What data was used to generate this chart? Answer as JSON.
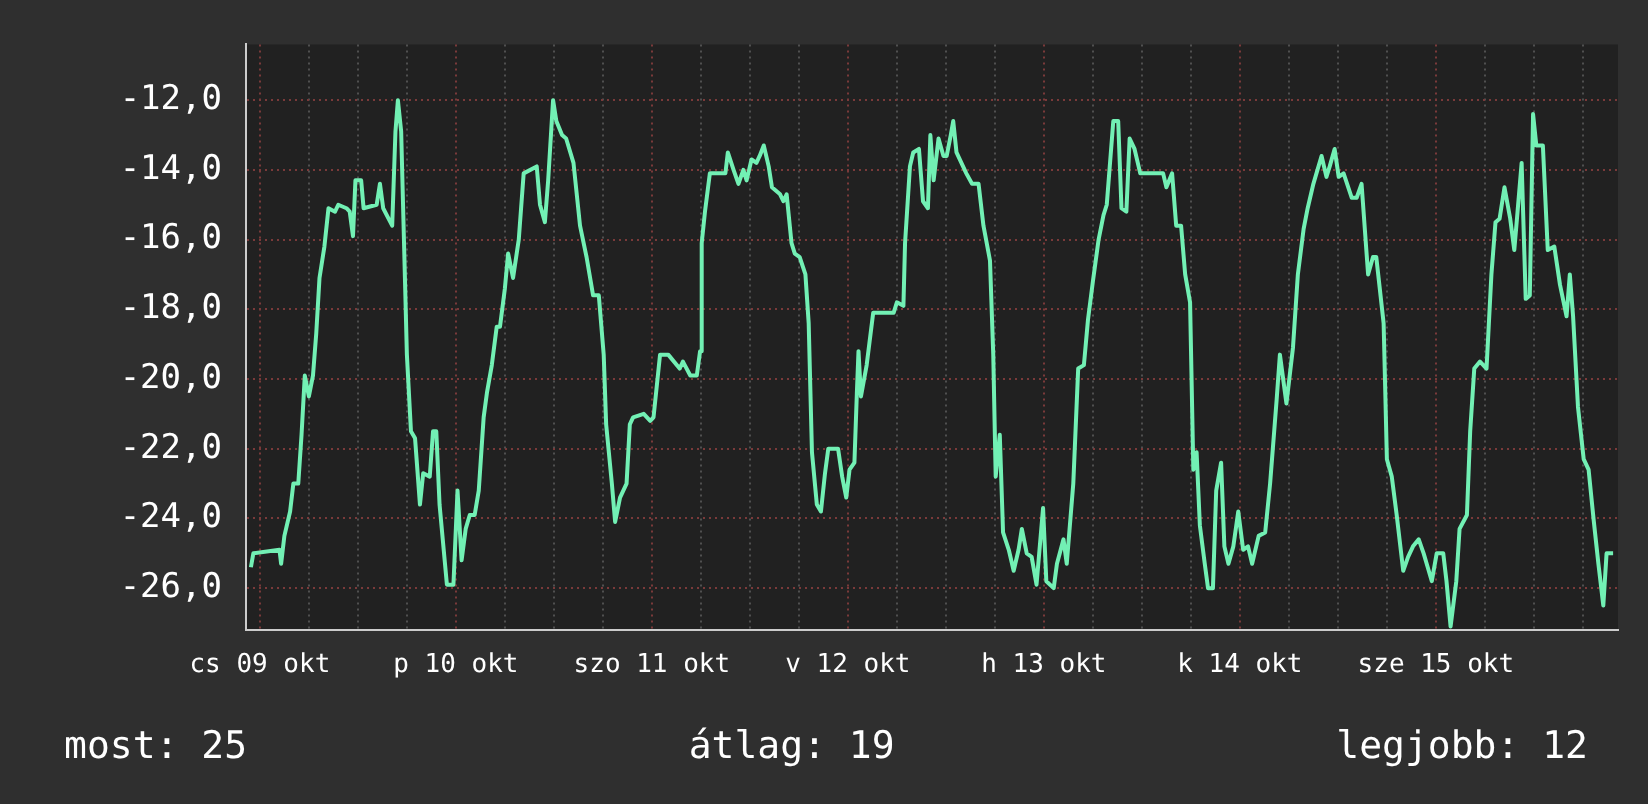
{
  "chart_data": {
    "type": "line",
    "series": [
      {
        "color": "#72f0b4",
        "x": [
          "--10-09T10:54",
          "--10-09T11:12",
          "--10-09T14:24",
          "--10-09T14:36",
          "--10-09T15:00",
          "--10-09T15:42",
          "--10-09T16:06",
          "--10-09T16:42",
          "--10-09T17:06",
          "--10-09T17:30",
          "--10-09T18:00",
          "--10-09T18:30",
          "--10-09T18:54",
          "--10-09T19:18",
          "--10-09T19:54",
          "--10-09T20:24",
          "--10-09T21:12",
          "--10-09T21:36",
          "--10-09T22:36",
          "--10-09T23:00",
          "--10-09T23:24",
          "--10-09T23:42",
          "--10-10T00:24",
          "--10-10T00:42",
          "--10-10T02:18",
          "--10-10T02:42",
          "--10-10T03:06",
          "--10-10T04:12",
          "--10-10T04:36",
          "--10-10T04:54",
          "--10-10T05:18",
          "--10-10T06:00",
          "--10-10T06:30",
          "--10-10T07:00",
          "--10-10T07:36",
          "--10-10T08:00",
          "--10-10T08:48",
          "--10-10T09:12",
          "--10-10T09:36",
          "--10-10T10:00",
          "--10-10T10:54",
          "--10-10T11:42",
          "--10-10T12:12",
          "--10-10T12:42",
          "--10-10T13:12",
          "--10-10T13:42",
          "--10-10T14:18",
          "--10-10T14:48",
          "--10-10T15:24",
          "--10-10T15:48",
          "--10-10T16:24",
          "--10-10T17:00",
          "--10-10T17:24",
          "--10-10T18:00",
          "--10-10T18:24",
          "--10-10T19:00",
          "--10-10T19:42",
          "--10-10T20:18",
          "--10-10T21:54",
          "--10-10T22:18",
          "--10-10T22:54",
          "--10-10T23:18",
          "--10-10T23:54",
          "--10-11T00:18",
          "--10-11T01:00",
          "--10-11T01:30",
          "--10-11T02:24",
          "--10-11T03:12",
          "--10-11T04:00",
          "--10-11T04:48",
          "--10-11T05:30",
          "--10-11T06:06",
          "--10-11T06:24",
          "--10-11T07:06",
          "--10-11T07:30",
          "--10-11T08:06",
          "--10-11T08:54",
          "--10-11T09:18",
          "--10-11T09:42",
          "--10-11T11:00",
          "--10-11T11:48",
          "--10-11T12:12",
          "--10-11T13:00",
          "--10-11T14:00",
          "--10-11T15:24",
          "--10-11T15:48",
          "--10-11T16:42",
          "--10-11T17:30",
          "--10-11T17:54",
          "--10-11T18:06",
          "--10-11T18:30",
          "--10-11T19:06",
          "--10-11T21:00",
          "--10-11T21:18",
          "--10-11T22:00",
          "--10-11T22:36",
          "--10-11T23:12",
          "--10-11T23:36",
          "--10-12T00:12",
          "--10-12T00:48",
          "--10-12T01:12",
          "--10-12T01:42",
          "--10-12T02:18",
          "--10-12T02:42",
          "--10-12T03:42",
          "--10-12T04:06",
          "--10-12T04:30",
          "--10-12T05:06",
          "--10-12T05:30",
          "--10-12T06:06",
          "--10-12T06:48",
          "--10-12T07:12",
          "--10-12T07:36",
          "--10-12T08:12",
          "--10-12T08:42",
          "--10-12T09:12",
          "--10-12T09:36",
          "--10-12T10:48",
          "--10-12T11:18",
          "--10-12T11:48",
          "--10-12T12:12",
          "--10-12T12:48",
          "--10-12T13:06",
          "--10-12T13:18",
          "--10-12T13:36",
          "--10-12T14:18",
          "--10-12T15:06",
          "--10-12T17:36",
          "--10-12T18:00",
          "--10-12T18:48",
          "--10-12T19:00",
          "--10-12T19:36",
          "--10-12T20:00",
          "--10-12T20:42",
          "--10-12T21:12",
          "--10-12T21:48",
          "--10-12T22:06",
          "--10-12T22:30",
          "--10-12T23:06",
          "--10-12T23:42",
          "--10-13T00:06",
          "--10-13T00:36",
          "--10-13T00:54",
          "--10-13T01:18",
          "--10-13T02:30",
          "--10-13T03:12",
          "--10-13T04:00",
          "--10-13T04:36",
          "--10-13T05:24",
          "--10-13T05:48",
          "--10-13T06:06",
          "--10-13T06:36",
          "--10-13T07:00",
          "--10-13T07:42",
          "--10-13T08:18",
          "--10-13T08:54",
          "--10-13T09:18",
          "--10-13T09:54",
          "--10-13T10:30",
          "--10-13T11:06",
          "--10-13T11:54",
          "--10-13T12:18",
          "--10-13T13:12",
          "--10-13T13:36",
          "--10-13T14:24",
          "--10-13T14:48",
          "--10-13T15:36",
          "--10-13T16:12",
          "--10-13T16:54",
          "--10-13T17:24",
          "--10-13T18:00",
          "--10-13T18:42",
          "--10-13T19:18",
          "--10-13T19:42",
          "--10-13T20:30",
          "--10-13T21:06",
          "--10-13T21:30",
          "--10-13T22:06",
          "--10-13T22:30",
          "--10-13T23:06",
          "--10-13T23:48",
          "--10-14T02:12",
          "--10-14T02:36",
          "--10-14T03:00",
          "--10-14T03:42",
          "--10-14T04:12",
          "--10-14T04:48",
          "--10-14T05:18",
          "--10-14T05:54",
          "--10-14T06:18",
          "--10-14T06:42",
          "--10-14T07:06",
          "--10-14T07:42",
          "--10-14T08:06",
          "--10-14T08:42",
          "--10-14T09:06",
          "--10-14T09:42",
          "--10-14T10:06",
          "--10-14T10:36",
          "--10-14T11:12",
          "--10-14T11:48",
          "--10-14T12:24",
          "--10-14T13:00",
          "--10-14T13:30",
          "--10-14T14:18",
          "--10-14T15:06",
          "--10-14T15:42",
          "--10-14T16:30",
          "--10-14T16:54",
          "--10-14T17:42",
          "--10-14T18:30",
          "--10-14T19:06",
          "--10-14T19:48",
          "--10-14T20:18",
          "--10-14T21:00",
          "--10-14T22:00",
          "--10-14T22:36",
          "--10-14T23:00",
          "--10-14T23:36",
          "--10-15T00:06",
          "--10-15T00:42",
          "--10-15T01:42",
          "--10-15T02:18",
          "--10-15T02:54",
          "--10-15T03:42",
          "--10-15T04:18",
          "--10-15T04:42",
          "--10-15T05:36",
          "--10-15T06:00",
          "--10-15T06:36",
          "--10-15T07:12",
          "--10-15T08:00",
          "--10-15T08:36",
          "--10-15T09:12",
          "--10-15T09:54",
          "--10-15T10:30",
          "--10-15T11:00",
          "--10-15T11:30",
          "--10-15T12:06",
          "--10-15T12:54",
          "--10-15T13:18",
          "--10-15T13:48",
          "--10-15T14:30",
          "--10-15T14:54",
          "--10-15T15:48",
          "--10-15T16:12",
          "--10-15T16:42",
          "--10-15T17:24",
          "--10-15T18:12",
          "--10-15T18:48",
          "--10-15T19:18",
          "--10-15T19:48",
          "--10-15T20:24",
          "--10-15T21:06",
          "--10-15T21:36",
          "--10-15T22:00",
          "--10-15T22:30",
          "--10-15T23:00",
          "--10-15T23:30",
          "--10-15T23:54",
          "--10-16T00:18",
          "--10-16T01:06",
          "--10-16T01:42",
          "--10-16T02:30",
          "--10-16T03:12",
          "--10-16T04:00",
          "--10-16T04:24",
          "--10-16T04:48",
          "--10-16T05:24",
          "--10-16T06:06",
          "--10-16T06:42",
          "--10-16T07:18",
          "--10-16T07:54",
          "--10-16T08:30",
          "--10-16T08:54",
          "--10-16T09:42"
        ],
        "values": [
          -25.4,
          -25.0,
          -24.9,
          -25.3,
          -24.5,
          -23.8,
          -23.0,
          -23.0,
          -21.6,
          -19.9,
          -20.5,
          -19.9,
          -18.7,
          -17.1,
          -16.2,
          -15.1,
          -15.2,
          -15.0,
          -15.1,
          -15.2,
          -15.9,
          -14.3,
          -14.3,
          -15.1,
          -15.0,
          -14.4,
          -15.1,
          -15.6,
          -12.9,
          -12.0,
          -12.9,
          -19.3,
          -21.5,
          -21.7,
          -23.6,
          -22.7,
          -22.8,
          -21.5,
          -21.5,
          -23.6,
          -25.9,
          -25.9,
          -23.2,
          -25.2,
          -24.3,
          -23.9,
          -23.9,
          -23.2,
          -21.1,
          -20.4,
          -19.6,
          -18.5,
          -18.5,
          -17.4,
          -16.4,
          -17.1,
          -16.0,
          -14.1,
          -13.9,
          -15.0,
          -15.5,
          -14.3,
          -12.0,
          -12.6,
          -13.0,
          -13.1,
          -13.8,
          -15.6,
          -16.5,
          -17.6,
          -17.6,
          -19.3,
          -21.3,
          -23.0,
          -24.1,
          -23.4,
          -23.0,
          -21.3,
          -21.1,
          -21.0,
          -21.2,
          -21.1,
          -19.3,
          -19.3,
          -19.7,
          -19.5,
          -19.9,
          -19.9,
          -19.2,
          -16.1,
          -15.2,
          -14.1,
          -14.1,
          -13.5,
          -14.0,
          -14.4,
          -14.0,
          -14.3,
          -13.7,
          -13.8,
          -13.6,
          -13.3,
          -13.9,
          -14.5,
          -14.7,
          -14.9,
          -14.7,
          -16.1,
          -16.4,
          -16.5,
          -17.0,
          -18.4,
          -22.1,
          -23.6,
          -23.8,
          -22.7,
          -22.0,
          -22.0,
          -22.8,
          -23.4,
          -22.6,
          -22.4,
          -20.4,
          -19.2,
          -20.5,
          -19.6,
          -18.1,
          -18.1,
          -17.8,
          -17.9,
          -16.1,
          -13.9,
          -13.5,
          -13.4,
          -14.9,
          -15.1,
          -13.0,
          -14.3,
          -13.1,
          -13.6,
          -13.6,
          -13.0,
          -12.6,
          -13.5,
          -14.1,
          -14.4,
          -14.4,
          -15.6,
          -16.6,
          -19.3,
          -22.8,
          -21.6,
          -24.4,
          -24.9,
          -25.5,
          -24.9,
          -24.3,
          -25.0,
          -25.1,
          -25.9,
          -23.7,
          -25.8,
          -26.0,
          -25.3,
          -24.6,
          -25.3,
          -23.0,
          -19.7,
          -19.6,
          -18.3,
          -17.2,
          -16.0,
          -15.3,
          -15.0,
          -12.6,
          -12.6,
          -15.1,
          -15.2,
          -13.1,
          -13.4,
          -14.1,
          -14.1,
          -14.1,
          -14.5,
          -14.1,
          -15.6,
          -15.6,
          -17.0,
          -17.8,
          -22.6,
          -22.1,
          -24.2,
          -25.3,
          -26.0,
          -26.0,
          -23.2,
          -22.4,
          -24.8,
          -25.3,
          -24.8,
          -23.8,
          -24.9,
          -24.8,
          -25.3,
          -24.5,
          -24.4,
          -23.0,
          -20.6,
          -19.3,
          -20.7,
          -19.1,
          -17.0,
          -15.7,
          -15.1,
          -14.4,
          -13.6,
          -14.2,
          -13.9,
          -13.4,
          -14.2,
          -14.1,
          -14.8,
          -14.8,
          -14.4,
          -17.0,
          -16.5,
          -16.5,
          -18.4,
          -22.3,
          -22.8,
          -23.9,
          -25.5,
          -25.1,
          -24.8,
          -24.6,
          -25.0,
          -25.4,
          -25.8,
          -25.0,
          -25.0,
          -25.8,
          -27.1,
          -25.8,
          -24.3,
          -23.9,
          -21.5,
          -19.7,
          -19.5,
          -19.7,
          -17.0,
          -15.5,
          -15.4,
          -14.5,
          -15.4,
          -16.3,
          -15.2,
          -13.8,
          -17.7,
          -17.6,
          -12.4,
          -13.3,
          -13.3,
          -16.3,
          -16.2,
          -17.3,
          -18.2,
          -17.0,
          -18.2,
          -20.8,
          -22.3,
          -22.6,
          -24.0,
          -25.3,
          -26.5,
          -25.0,
          -25.0
        ]
      }
    ],
    "xlim": [
      "--10-09T10:18",
      "--10-16T10:18"
    ],
    "xticks": [
      {
        "value": "--10-09T12:00",
        "label": "cs 09 okt"
      },
      {
        "value": "--10-09T18:00",
        "label": null
      },
      {
        "value": "--10-10T00:00",
        "label": null
      },
      {
        "value": "--10-10T06:00",
        "label": null
      },
      {
        "value": "--10-10T12:00",
        "label": "p 10 okt"
      },
      {
        "value": "--10-10T18:00",
        "label": null
      },
      {
        "value": "--10-11T00:00",
        "label": null
      },
      {
        "value": "--10-11T06:00",
        "label": null
      },
      {
        "value": "--10-11T12:00",
        "label": "szo 11 okt"
      },
      {
        "value": "--10-11T18:00",
        "label": null
      },
      {
        "value": "--10-12T00:00",
        "label": null
      },
      {
        "value": "--10-12T06:00",
        "label": null
      },
      {
        "value": "--10-12T12:00",
        "label": "v 12 okt"
      },
      {
        "value": "--10-12T18:00",
        "label": null
      },
      {
        "value": "--10-13T00:00",
        "label": null
      },
      {
        "value": "--10-13T06:00",
        "label": null
      },
      {
        "value": "--10-13T12:00",
        "label": "h 13 okt"
      },
      {
        "value": "--10-13T18:00",
        "label": null
      },
      {
        "value": "--10-14T00:00",
        "label": null
      },
      {
        "value": "--10-14T06:00",
        "label": null
      },
      {
        "value": "--10-14T12:00",
        "label": "k 14 okt"
      },
      {
        "value": "--10-14T18:00",
        "label": null
      },
      {
        "value": "--10-15T00:00",
        "label": null
      },
      {
        "value": "--10-15T06:00",
        "label": null
      },
      {
        "value": "--10-15T12:00",
        "label": "sze 15 okt"
      },
      {
        "value": "--10-15T18:00",
        "label": null
      },
      {
        "value": "--10-16T00:00",
        "label": null
      },
      {
        "value": "--10-16T06:00",
        "label": null
      }
    ],
    "ylim": [
      -27.2,
      -10.4
    ],
    "yticks": [
      {
        "value": -12,
        "label": "-12,0"
      },
      {
        "value": -14,
        "label": "-14,0"
      },
      {
        "value": -16,
        "label": "-16,0"
      },
      {
        "value": -18,
        "label": "-18,0"
      },
      {
        "value": -20,
        "label": "-20,0"
      },
      {
        "value": -22,
        "label": "-22,0"
      },
      {
        "value": -24,
        "label": "-24,0"
      },
      {
        "value": -26,
        "label": "-26,0"
      }
    ],
    "grid": true,
    "marker": "none",
    "line_style": "solid",
    "annotations": [
      "most: 25",
      "átlag: 19",
      "legjobb: 12"
    ]
  }
}
